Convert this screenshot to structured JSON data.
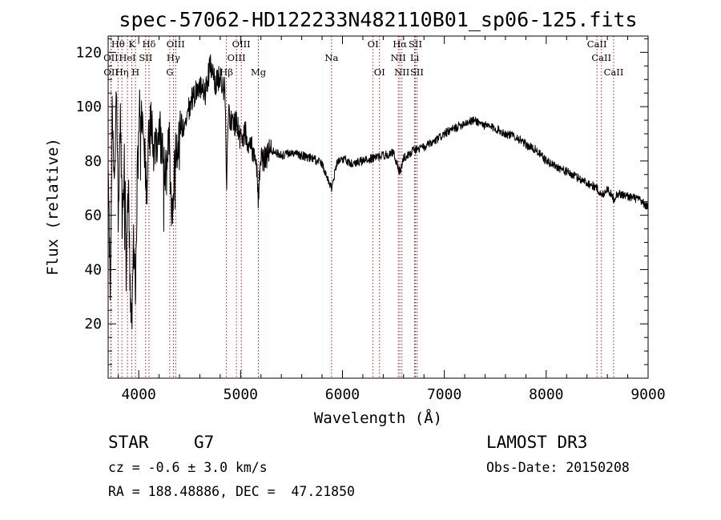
{
  "chart_data": {
    "type": "line",
    "title": "spec-57062-HD122233N482110B01_sp06-125.fits",
    "xlabel": "Wavelength (Å)",
    "ylabel": "Flux (relative)",
    "xlim": [
      3700,
      9000
    ],
    "ylim": [
      0,
      126
    ],
    "xticks": [
      4000,
      5000,
      6000,
      7000,
      8000,
      9000
    ],
    "yticks": [
      20,
      40,
      60,
      80,
      100,
      120
    ],
    "spectrum": {
      "name": "flux",
      "x": [
        3700,
        3720,
        3740,
        3760,
        3780,
        3800,
        3820,
        3840,
        3860,
        3880,
        3900,
        3920,
        3933,
        3950,
        3968,
        3990,
        4010,
        4040,
        4060,
        4080,
        4100,
        4120,
        4150,
        4180,
        4210,
        4240,
        4270,
        4300,
        4320,
        4340,
        4360,
        4380,
        4400,
        4450,
        4500,
        4550,
        4600,
        4650,
        4700,
        4750,
        4800,
        4850,
        4861,
        4880,
        4920,
        4960,
        5000,
        5050,
        5100,
        5150,
        5172,
        5200,
        5300,
        5400,
        5500,
        5600,
        5700,
        5800,
        5893,
        5950,
        6000,
        6100,
        6200,
        6300,
        6400,
        6500,
        6563,
        6600,
        6700,
        6800,
        6900,
        7000,
        7100,
        7200,
        7300,
        7400,
        7500,
        7600,
        7700,
        7800,
        7900,
        8000,
        8100,
        8200,
        8300,
        8400,
        8500,
        8542,
        8600,
        8662,
        8700,
        8800,
        8900,
        9000
      ],
      "y": [
        85,
        30,
        100,
        70,
        110,
        60,
        95,
        55,
        80,
        45,
        75,
        22,
        20,
        60,
        25,
        85,
        100,
        92,
        82,
        70,
        90,
        95,
        84,
        88,
        92,
        80,
        75,
        88,
        60,
        65,
        85,
        82,
        95,
        90,
        100,
        105,
        108,
        104,
        115,
        108,
        112,
        105,
        70,
        98,
        93,
        95,
        88,
        90,
        86,
        82,
        67,
        80,
        84,
        82,
        83,
        82,
        81,
        79,
        70,
        80,
        81,
        79,
        80,
        81,
        82,
        83,
        76,
        81,
        84,
        85,
        87,
        90,
        92,
        94,
        95,
        93,
        92,
        90,
        89,
        86,
        84,
        80,
        78,
        76,
        74,
        72,
        70,
        67,
        70,
        66,
        68,
        67,
        66,
        63
      ]
    },
    "line_markers": [
      {
        "label": "Hθ",
        "x": 3797,
        "row": 0
      },
      {
        "label": "K",
        "x": 3933,
        "row": 0
      },
      {
        "label": "Hδ",
        "x": 4101,
        "row": 0
      },
      {
        "label": "OIII",
        "x": 4363,
        "row": 0
      },
      {
        "label": "OIII",
        "x": 5007,
        "row": 0
      },
      {
        "label": "OI",
        "x": 6300,
        "row": 0
      },
      {
        "label": "Hα",
        "x": 6563,
        "row": 0
      },
      {
        "label": "SII",
        "x": 6716,
        "row": 0
      },
      {
        "label": "CaII",
        "x": 8498,
        "row": 0
      },
      {
        "label": "OII",
        "x": 3727,
        "row": 1
      },
      {
        "label": "HeI",
        "x": 3889,
        "row": 1
      },
      {
        "label": "SII",
        "x": 4068,
        "row": 1
      },
      {
        "label": "Hγ",
        "x": 4340,
        "row": 1
      },
      {
        "label": "OIII",
        "x": 4959,
        "row": 1
      },
      {
        "label": "Na",
        "x": 5893,
        "row": 1
      },
      {
        "label": "NII",
        "x": 6548,
        "row": 1
      },
      {
        "label": "Li",
        "x": 6708,
        "row": 1
      },
      {
        "label": "CaII",
        "x": 8542,
        "row": 1
      },
      {
        "label": "OII",
        "x": 3729,
        "row": 2
      },
      {
        "label": "Hη",
        "x": 3835,
        "row": 2
      },
      {
        "label": "H",
        "x": 3968,
        "row": 2
      },
      {
        "label": "G",
        "x": 4305,
        "row": 2
      },
      {
        "label": "Hβ",
        "x": 4861,
        "row": 2
      },
      {
        "label": "Mg",
        "x": 5175,
        "row": 2
      },
      {
        "label": "OI",
        "x": 6364,
        "row": 2
      },
      {
        "label": "NII",
        "x": 6584,
        "row": 2
      },
      {
        "label": "SII",
        "x": 6731,
        "row": 2
      },
      {
        "label": "CaII",
        "x": 8662,
        "row": 2
      }
    ]
  },
  "footer": {
    "object_class": "STAR",
    "subclass": "G7",
    "survey": "LAMOST DR3",
    "redshift": "cz = -0.6 ± 3.0 km/s",
    "obs_date": "Obs-Date: 20150208",
    "coords": "RA = 188.48886, DEC =  47.21850"
  }
}
